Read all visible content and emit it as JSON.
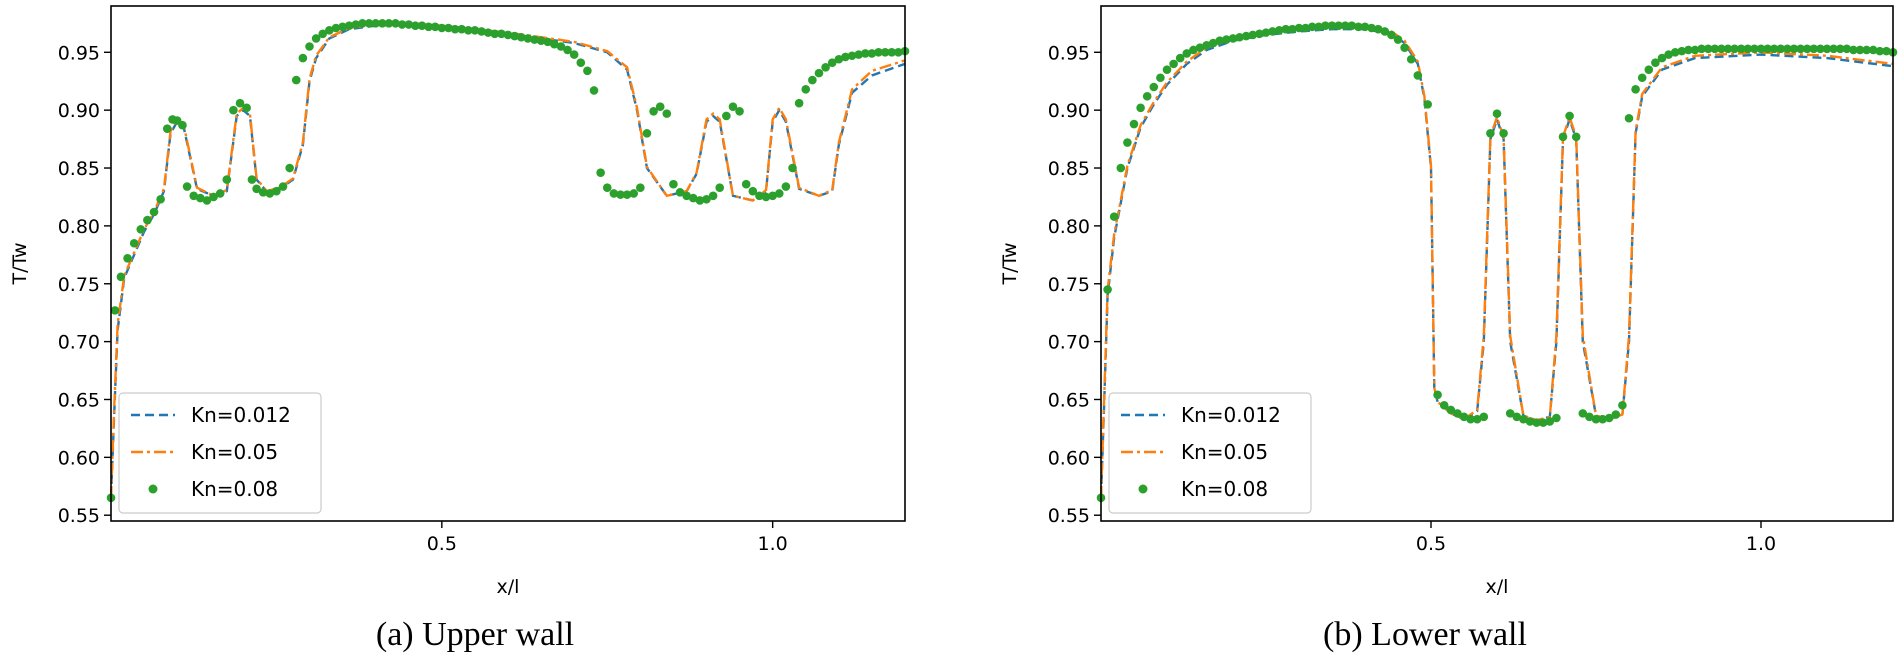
{
  "chart_data": [
    {
      "id": "upper",
      "type": "line",
      "caption": "(a) Upper wall",
      "xlabel": "x/l",
      "ylabel": "T/Tw",
      "xlim": [
        0.0,
        1.2
      ],
      "ylim": [
        0.545,
        0.99
      ],
      "xticks": [
        0.5,
        1.0
      ],
      "xtick_labels": [
        "0.5",
        "1.0"
      ],
      "yticks": [
        0.55,
        0.6,
        0.65,
        0.7,
        0.75,
        0.8,
        0.85,
        0.9,
        0.95
      ],
      "ytick_labels": [
        "0.55",
        "0.60",
        "0.65",
        "0.70",
        "0.75",
        "0.80",
        "0.85",
        "0.90",
        "0.95"
      ],
      "grid": false,
      "legend_position": "lower-left",
      "series": [
        {
          "name": "Kn=0.012",
          "style": "dashed",
          "color": "#1f77b4",
          "x": [
            0.0,
            0.005,
            0.01,
            0.02,
            0.035,
            0.05,
            0.065,
            0.08,
            0.09,
            0.1,
            0.11,
            0.13,
            0.155,
            0.175,
            0.19,
            0.2,
            0.21,
            0.22,
            0.235,
            0.255,
            0.275,
            0.29,
            0.3,
            0.31,
            0.33,
            0.36,
            0.4,
            0.45,
            0.5,
            0.55,
            0.6,
            0.65,
            0.7,
            0.75,
            0.78,
            0.795,
            0.81,
            0.84,
            0.87,
            0.885,
            0.9,
            0.91,
            0.92,
            0.94,
            0.97,
            0.99,
            1.0,
            1.01,
            1.02,
            1.04,
            1.07,
            1.09,
            1.1,
            1.12,
            1.15,
            1.2
          ],
          "y": [
            0.565,
            0.64,
            0.71,
            0.755,
            0.775,
            0.795,
            0.81,
            0.83,
            0.88,
            0.89,
            0.885,
            0.832,
            0.826,
            0.83,
            0.895,
            0.9,
            0.895,
            0.84,
            0.83,
            0.832,
            0.84,
            0.87,
            0.925,
            0.945,
            0.962,
            0.97,
            0.973,
            0.974,
            0.972,
            0.969,
            0.966,
            0.962,
            0.958,
            0.95,
            0.935,
            0.9,
            0.85,
            0.826,
            0.83,
            0.845,
            0.89,
            0.895,
            0.89,
            0.826,
            0.822,
            0.83,
            0.89,
            0.9,
            0.89,
            0.832,
            0.826,
            0.83,
            0.87,
            0.915,
            0.93,
            0.94
          ]
        },
        {
          "name": "Kn=0.05",
          "style": "dashdot",
          "color": "#ff7f0e",
          "x": [
            0.0,
            0.005,
            0.01,
            0.02,
            0.035,
            0.05,
            0.065,
            0.08,
            0.09,
            0.1,
            0.11,
            0.13,
            0.155,
            0.175,
            0.19,
            0.2,
            0.21,
            0.22,
            0.235,
            0.255,
            0.275,
            0.29,
            0.3,
            0.31,
            0.33,
            0.36,
            0.4,
            0.45,
            0.5,
            0.55,
            0.6,
            0.65,
            0.7,
            0.75,
            0.78,
            0.795,
            0.81,
            0.84,
            0.87,
            0.885,
            0.9,
            0.91,
            0.92,
            0.94,
            0.97,
            0.99,
            1.0,
            1.01,
            1.02,
            1.04,
            1.07,
            1.09,
            1.1,
            1.12,
            1.15,
            1.2
          ],
          "y": [
            0.565,
            0.645,
            0.715,
            0.757,
            0.777,
            0.797,
            0.812,
            0.832,
            0.882,
            0.892,
            0.887,
            0.833,
            0.826,
            0.831,
            0.897,
            0.902,
            0.897,
            0.841,
            0.83,
            0.833,
            0.841,
            0.872,
            0.927,
            0.947,
            0.963,
            0.971,
            0.974,
            0.975,
            0.973,
            0.97,
            0.967,
            0.963,
            0.959,
            0.951,
            0.937,
            0.902,
            0.851,
            0.826,
            0.83,
            0.846,
            0.892,
            0.897,
            0.892,
            0.826,
            0.822,
            0.831,
            0.892,
            0.902,
            0.892,
            0.833,
            0.826,
            0.831,
            0.872,
            0.918,
            0.934,
            0.943
          ]
        },
        {
          "name": "Kn=0.08",
          "style": "dots",
          "color": "#2ca02c",
          "x": [
            0.0,
            0.006,
            0.015,
            0.025,
            0.035,
            0.045,
            0.055,
            0.065,
            0.075,
            0.085,
            0.093,
            0.1,
            0.108,
            0.115,
            0.125,
            0.135,
            0.145,
            0.155,
            0.165,
            0.175,
            0.185,
            0.195,
            0.205,
            0.213,
            0.22,
            0.23,
            0.24,
            0.25,
            0.26,
            0.27,
            0.28,
            0.29,
            0.3,
            0.31,
            0.32,
            0.33,
            0.34,
            0.35,
            0.36,
            0.37,
            0.38,
            0.39,
            0.4,
            0.41,
            0.42,
            0.43,
            0.44,
            0.45,
            0.46,
            0.47,
            0.48,
            0.49,
            0.5,
            0.51,
            0.52,
            0.53,
            0.54,
            0.55,
            0.56,
            0.57,
            0.58,
            0.59,
            0.6,
            0.61,
            0.62,
            0.63,
            0.64,
            0.65,
            0.66,
            0.67,
            0.68,
            0.69,
            0.7,
            0.71,
            0.72,
            0.73,
            0.74,
            0.75,
            0.76,
            0.77,
            0.78,
            0.79,
            0.8,
            0.81,
            0.82,
            0.83,
            0.84,
            0.85,
            0.86,
            0.87,
            0.88,
            0.89,
            0.9,
            0.91,
            0.92,
            0.93,
            0.94,
            0.95,
            0.96,
            0.97,
            0.98,
            0.99,
            1.0,
            1.01,
            1.02,
            1.03,
            1.04,
            1.05,
            1.06,
            1.07,
            1.08,
            1.09,
            1.1,
            1.11,
            1.12,
            1.13,
            1.14,
            1.15,
            1.16,
            1.17,
            1.18,
            1.19,
            1.2
          ],
          "y": [
            0.565,
            0.727,
            0.756,
            0.772,
            0.785,
            0.797,
            0.805,
            0.812,
            0.823,
            0.884,
            0.892,
            0.891,
            0.887,
            0.834,
            0.826,
            0.824,
            0.822,
            0.825,
            0.828,
            0.84,
            0.9,
            0.906,
            0.902,
            0.84,
            0.832,
            0.829,
            0.828,
            0.83,
            0.834,
            0.85,
            0.926,
            0.945,
            0.955,
            0.962,
            0.966,
            0.969,
            0.971,
            0.972,
            0.973,
            0.974,
            0.975,
            0.975,
            0.975,
            0.975,
            0.975,
            0.975,
            0.974,
            0.974,
            0.973,
            0.973,
            0.972,
            0.972,
            0.971,
            0.971,
            0.97,
            0.97,
            0.969,
            0.969,
            0.968,
            0.967,
            0.966,
            0.966,
            0.965,
            0.964,
            0.963,
            0.962,
            0.961,
            0.96,
            0.959,
            0.957,
            0.955,
            0.952,
            0.948,
            0.941,
            0.934,
            0.917,
            0.846,
            0.833,
            0.828,
            0.827,
            0.827,
            0.828,
            0.833,
            0.88,
            0.899,
            0.903,
            0.897,
            0.836,
            0.829,
            0.826,
            0.824,
            0.822,
            0.823,
            0.826,
            0.833,
            0.895,
            0.903,
            0.899,
            0.836,
            0.83,
            0.826,
            0.825,
            0.826,
            0.828,
            0.834,
            0.85,
            0.906,
            0.918,
            0.926,
            0.932,
            0.937,
            0.941,
            0.944,
            0.946,
            0.947,
            0.948,
            0.949,
            0.949,
            0.95,
            0.95,
            0.95,
            0.95,
            0.951
          ]
        }
      ]
    },
    {
      "id": "lower",
      "type": "line",
      "caption": "(b) Lower wall",
      "xlabel": "x/l",
      "ylabel": "T/Tw",
      "xlim": [
        0.0,
        1.2
      ],
      "ylim": [
        0.545,
        0.99
      ],
      "xticks": [
        0.5,
        1.0
      ],
      "xtick_labels": [
        "0.5",
        "1.0"
      ],
      "yticks": [
        0.55,
        0.6,
        0.65,
        0.7,
        0.75,
        0.8,
        0.85,
        0.9,
        0.95
      ],
      "ytick_labels": [
        "0.55",
        "0.60",
        "0.65",
        "0.70",
        "0.75",
        "0.80",
        "0.85",
        "0.90",
        "0.95"
      ],
      "grid": false,
      "legend_position": "lower-left",
      "series": [
        {
          "name": "Kn=0.012",
          "style": "dashed",
          "color": "#1f77b4",
          "x": [
            0.0,
            0.005,
            0.01,
            0.02,
            0.04,
            0.06,
            0.08,
            0.1,
            0.13,
            0.16,
            0.2,
            0.25,
            0.3,
            0.35,
            0.4,
            0.44,
            0.46,
            0.48,
            0.49,
            0.5,
            0.505,
            0.51,
            0.53,
            0.55,
            0.57,
            0.58,
            0.59,
            0.6,
            0.61,
            0.62,
            0.64,
            0.66,
            0.68,
            0.69,
            0.7,
            0.71,
            0.72,
            0.73,
            0.75,
            0.77,
            0.79,
            0.8,
            0.81,
            0.82,
            0.85,
            0.9,
            1.0,
            1.1,
            1.2
          ],
          "y": [
            0.565,
            0.65,
            0.74,
            0.79,
            0.85,
            0.885,
            0.905,
            0.922,
            0.94,
            0.952,
            0.96,
            0.965,
            0.968,
            0.97,
            0.97,
            0.966,
            0.958,
            0.94,
            0.91,
            0.85,
            0.66,
            0.648,
            0.638,
            0.633,
            0.64,
            0.7,
            0.875,
            0.892,
            0.875,
            0.7,
            0.636,
            0.632,
            0.635,
            0.7,
            0.875,
            0.892,
            0.875,
            0.7,
            0.636,
            0.633,
            0.637,
            0.7,
            0.88,
            0.912,
            0.935,
            0.945,
            0.948,
            0.945,
            0.938
          ]
        },
        {
          "name": "Kn=0.05",
          "style": "dashdot",
          "color": "#ff7f0e",
          "x": [
            0.0,
            0.005,
            0.01,
            0.02,
            0.04,
            0.06,
            0.08,
            0.1,
            0.13,
            0.16,
            0.2,
            0.25,
            0.3,
            0.35,
            0.4,
            0.44,
            0.46,
            0.48,
            0.49,
            0.5,
            0.505,
            0.51,
            0.53,
            0.55,
            0.57,
            0.58,
            0.59,
            0.6,
            0.61,
            0.62,
            0.64,
            0.66,
            0.68,
            0.69,
            0.7,
            0.71,
            0.72,
            0.73,
            0.75,
            0.77,
            0.79,
            0.8,
            0.81,
            0.82,
            0.85,
            0.9,
            1.0,
            1.1,
            1.2
          ],
          "y": [
            0.565,
            0.655,
            0.745,
            0.793,
            0.852,
            0.887,
            0.907,
            0.924,
            0.942,
            0.954,
            0.962,
            0.967,
            0.97,
            0.972,
            0.972,
            0.968,
            0.96,
            0.942,
            0.912,
            0.852,
            0.66,
            0.648,
            0.638,
            0.633,
            0.641,
            0.705,
            0.877,
            0.894,
            0.877,
            0.705,
            0.636,
            0.632,
            0.635,
            0.705,
            0.877,
            0.894,
            0.877,
            0.705,
            0.636,
            0.633,
            0.637,
            0.705,
            0.882,
            0.914,
            0.937,
            0.947,
            0.95,
            0.947,
            0.94
          ]
        },
        {
          "name": "Kn=0.08",
          "style": "dots",
          "color": "#2ca02c",
          "x": [
            0.0,
            0.01,
            0.02,
            0.03,
            0.04,
            0.05,
            0.06,
            0.07,
            0.08,
            0.09,
            0.1,
            0.11,
            0.12,
            0.13,
            0.14,
            0.15,
            0.16,
            0.17,
            0.18,
            0.19,
            0.2,
            0.21,
            0.22,
            0.23,
            0.24,
            0.25,
            0.26,
            0.27,
            0.28,
            0.29,
            0.3,
            0.31,
            0.32,
            0.33,
            0.34,
            0.35,
            0.36,
            0.37,
            0.38,
            0.39,
            0.4,
            0.41,
            0.42,
            0.43,
            0.44,
            0.45,
            0.46,
            0.47,
            0.48,
            0.495,
            0.51,
            0.52,
            0.53,
            0.54,
            0.55,
            0.56,
            0.57,
            0.58,
            0.59,
            0.6,
            0.61,
            0.62,
            0.63,
            0.64,
            0.65,
            0.66,
            0.67,
            0.68,
            0.69,
            0.7,
            0.71,
            0.72,
            0.73,
            0.74,
            0.75,
            0.76,
            0.77,
            0.78,
            0.79,
            0.8,
            0.81,
            0.82,
            0.83,
            0.84,
            0.85,
            0.86,
            0.87,
            0.88,
            0.89,
            0.9,
            0.91,
            0.92,
            0.93,
            0.94,
            0.95,
            0.96,
            0.97,
            0.98,
            0.99,
            1.0,
            1.01,
            1.02,
            1.03,
            1.04,
            1.05,
            1.06,
            1.07,
            1.08,
            1.09,
            1.1,
            1.11,
            1.12,
            1.13,
            1.14,
            1.15,
            1.16,
            1.17,
            1.18,
            1.19,
            1.2
          ],
          "y": [
            0.565,
            0.745,
            0.808,
            0.85,
            0.872,
            0.888,
            0.902,
            0.912,
            0.92,
            0.928,
            0.935,
            0.94,
            0.945,
            0.949,
            0.952,
            0.954,
            0.956,
            0.958,
            0.96,
            0.961,
            0.962,
            0.963,
            0.964,
            0.965,
            0.966,
            0.967,
            0.968,
            0.969,
            0.97,
            0.97,
            0.971,
            0.971,
            0.972,
            0.972,
            0.973,
            0.973,
            0.973,
            0.973,
            0.973,
            0.972,
            0.972,
            0.971,
            0.97,
            0.968,
            0.965,
            0.961,
            0.954,
            0.944,
            0.93,
            0.905,
            0.654,
            0.645,
            0.641,
            0.638,
            0.635,
            0.633,
            0.633,
            0.635,
            0.88,
            0.897,
            0.88,
            0.638,
            0.635,
            0.633,
            0.631,
            0.63,
            0.63,
            0.631,
            0.634,
            0.877,
            0.895,
            0.877,
            0.638,
            0.635,
            0.633,
            0.633,
            0.634,
            0.637,
            0.645,
            0.893,
            0.918,
            0.928,
            0.935,
            0.941,
            0.945,
            0.948,
            0.95,
            0.951,
            0.952,
            0.952,
            0.953,
            0.953,
            0.953,
            0.953,
            0.953,
            0.953,
            0.953,
            0.953,
            0.953,
            0.953,
            0.953,
            0.953,
            0.953,
            0.953,
            0.953,
            0.953,
            0.953,
            0.953,
            0.953,
            0.953,
            0.953,
            0.953,
            0.953,
            0.952,
            0.952,
            0.952,
            0.952,
            0.951,
            0.951,
            0.95
          ]
        }
      ]
    }
  ]
}
